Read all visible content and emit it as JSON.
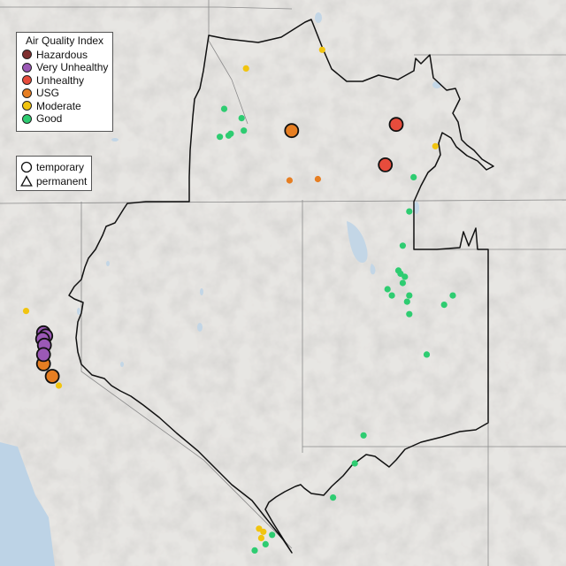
{
  "legend": {
    "title": "Air Quality Index",
    "categories": [
      {
        "label": "Hazardous",
        "color": "#7e2e2e"
      },
      {
        "label": "Very Unhealthy",
        "color": "#9b59b6"
      },
      {
        "label": "Unhealthy",
        "color": "#e74c3c"
      },
      {
        "label": "USG",
        "color": "#e67e22"
      },
      {
        "label": "Moderate",
        "color": "#f1c40f"
      },
      {
        "label": "Good",
        "color": "#2ecc71"
      }
    ]
  },
  "shape_legend": {
    "temporary_label": "temporary",
    "permanent_label": "permanent"
  },
  "monitors": [
    {
      "category": "Good",
      "type": "permanent",
      "lon": -118.45,
      "lat": 44.55
    },
    {
      "category": "Good",
      "type": "permanent",
      "lon": -118.05,
      "lat": 44.4
    },
    {
      "category": "Good",
      "type": "permanent",
      "lon": -118.0,
      "lat": 44.2
    },
    {
      "category": "Good",
      "type": "permanent",
      "lon": -118.55,
      "lat": 44.1
    },
    {
      "category": "Good",
      "type": "permanent",
      "lon": -118.35,
      "lat": 44.12
    },
    {
      "category": "Good",
      "type": "permanent",
      "lon": -118.3,
      "lat": 44.15
    },
    {
      "category": "Moderate",
      "type": "permanent",
      "lon": -117.95,
      "lat": 45.2
    },
    {
      "category": "Moderate",
      "type": "permanent",
      "lon": -116.2,
      "lat": 45.5
    },
    {
      "category": "Moderate",
      "type": "permanent",
      "lon": -113.6,
      "lat": 43.95
    },
    {
      "category": "USG",
      "type": "temporary",
      "lon": -116.9,
      "lat": 44.2
    },
    {
      "category": "USG",
      "type": "permanent",
      "lon": -116.95,
      "lat": 43.4
    },
    {
      "category": "USG",
      "type": "permanent",
      "lon": -116.3,
      "lat": 43.42
    },
    {
      "category": "Unhealthy",
      "type": "temporary",
      "lon": -114.5,
      "lat": 44.3
    },
    {
      "category": "Unhealthy",
      "type": "temporary",
      "lon": -114.75,
      "lat": 43.65
    },
    {
      "category": "Good",
      "type": "permanent",
      "lon": -114.1,
      "lat": 43.45
    },
    {
      "category": "Good",
      "type": "permanent",
      "lon": -114.2,
      "lat": 42.9
    },
    {
      "category": "Good",
      "type": "permanent",
      "lon": -114.35,
      "lat": 42.35
    },
    {
      "category": "Good",
      "type": "permanent",
      "lon": -114.45,
      "lat": 41.95
    },
    {
      "category": "Good",
      "type": "permanent",
      "lon": -114.4,
      "lat": 41.9
    },
    {
      "category": "Good",
      "type": "permanent",
      "lon": -114.3,
      "lat": 41.85
    },
    {
      "category": "Good",
      "type": "permanent",
      "lon": -114.35,
      "lat": 41.75
    },
    {
      "category": "Good",
      "type": "permanent",
      "lon": -114.7,
      "lat": 41.65
    },
    {
      "category": "Good",
      "type": "permanent",
      "lon": -114.6,
      "lat": 41.55
    },
    {
      "category": "Good",
      "type": "permanent",
      "lon": -114.2,
      "lat": 41.55
    },
    {
      "category": "Good",
      "type": "permanent",
      "lon": -114.25,
      "lat": 41.45
    },
    {
      "category": "Good",
      "type": "permanent",
      "lon": -114.2,
      "lat": 41.25
    },
    {
      "category": "Good",
      "type": "permanent",
      "lon": -113.4,
      "lat": 41.4
    },
    {
      "category": "Good",
      "type": "permanent",
      "lon": -113.2,
      "lat": 41.55
    },
    {
      "category": "Good",
      "type": "permanent",
      "lon": -113.8,
      "lat": 40.6
    },
    {
      "category": "Good",
      "type": "permanent",
      "lon": -115.25,
      "lat": 39.3
    },
    {
      "category": "Good",
      "type": "permanent",
      "lon": -115.45,
      "lat": 38.85
    },
    {
      "category": "Good",
      "type": "permanent",
      "lon": -115.95,
      "lat": 38.3
    },
    {
      "category": "Moderate",
      "type": "permanent",
      "lon": -117.65,
      "lat": 37.8
    },
    {
      "category": "Moderate",
      "type": "permanent",
      "lon": -117.55,
      "lat": 37.75
    },
    {
      "category": "Moderate",
      "type": "permanent",
      "lon": -117.6,
      "lat": 37.65
    },
    {
      "category": "Good",
      "type": "permanent",
      "lon": -117.35,
      "lat": 37.7
    },
    {
      "category": "Good",
      "type": "permanent",
      "lon": -117.75,
      "lat": 37.45
    },
    {
      "category": "Good",
      "type": "permanent",
      "lon": -117.5,
      "lat": 37.55
    },
    {
      "category": "Moderate",
      "type": "permanent",
      "lon": -123.0,
      "lat": 41.3
    },
    {
      "category": "Very Unhealthy",
      "type": "temporary",
      "lon": -122.6,
      "lat": 40.95
    },
    {
      "category": "Very Unhealthy",
      "type": "temporary",
      "lon": -122.55,
      "lat": 40.9
    },
    {
      "category": "Very Unhealthy",
      "type": "temporary",
      "lon": -122.62,
      "lat": 40.85
    },
    {
      "category": "Very Unhealthy",
      "type": "temporary",
      "lon": -122.58,
      "lat": 40.75
    },
    {
      "category": "Very Unhealthy",
      "type": "temporary",
      "lon": -122.6,
      "lat": 40.6
    },
    {
      "category": "USG",
      "type": "temporary",
      "lon": -122.6,
      "lat": 40.45
    },
    {
      "category": "USG",
      "type": "temporary",
      "lon": -122.4,
      "lat": 40.25
    },
    {
      "category": "Moderate",
      "type": "permanent",
      "lon": -122.25,
      "lat": 40.1
    }
  ]
}
